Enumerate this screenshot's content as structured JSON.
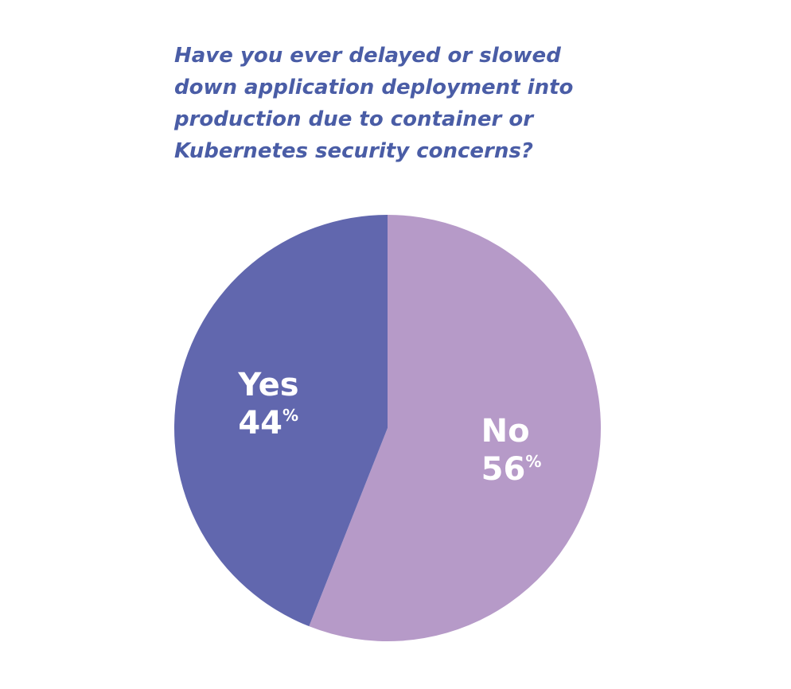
{
  "title_lines": [
    "Have you ever delayed or slowed",
    "down application deployment into",
    "production due to container or",
    "Kubernetes security concerns?"
  ],
  "chart_data": {
    "type": "pie",
    "title": "Have you ever delayed or slowed down application deployment into production due to container or Kubernetes security concerns?",
    "slices": [
      {
        "label": "No",
        "value": 56,
        "display": "56",
        "unit": "%",
        "color": "#b69ac8"
      },
      {
        "label": "Yes",
        "value": 44,
        "display": "44",
        "unit": "%",
        "color": "#6167ae"
      }
    ],
    "start": "12 o'clock",
    "direction": "clockwise",
    "legend": "none"
  },
  "colors": {
    "title": "#4a5da6",
    "label_text": "#ffffff"
  }
}
